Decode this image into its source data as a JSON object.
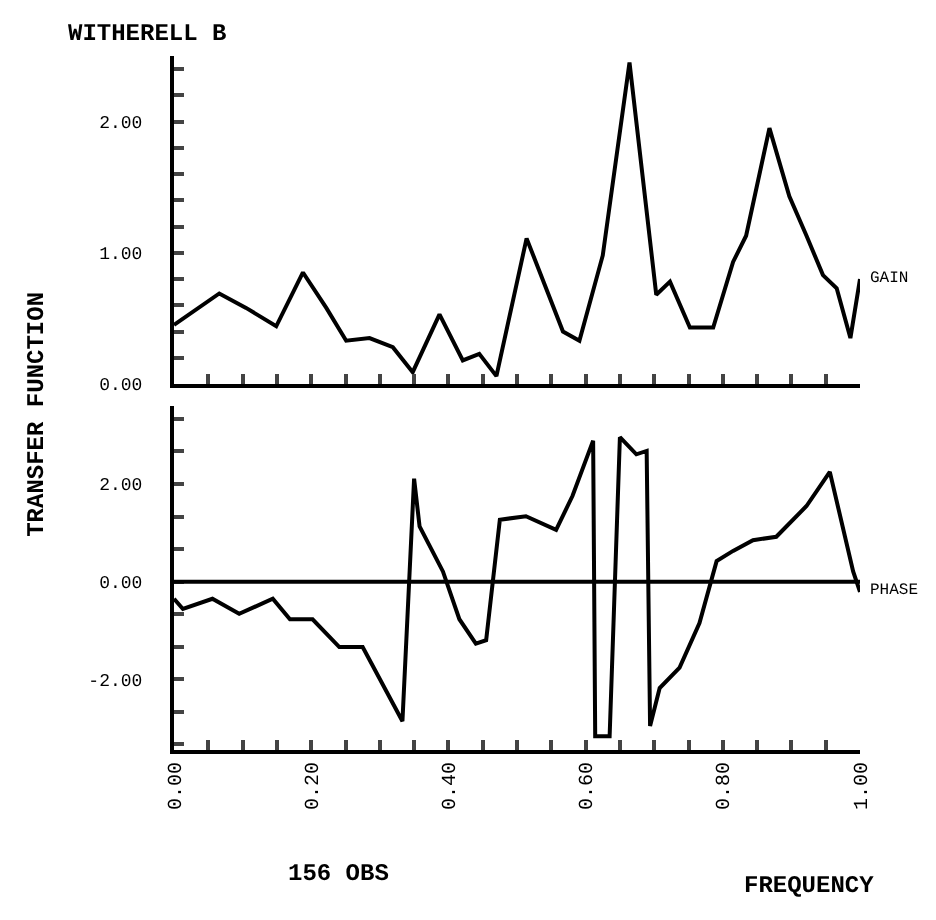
{
  "chart_data": [
    {
      "type": "line",
      "title": "WITHERELL B",
      "x": [
        0,
        0.066,
        0.105,
        0.149,
        0.188,
        0.222,
        0.251,
        0.285,
        0.319,
        0.348,
        0.387,
        0.421,
        0.445,
        0.47,
        0.514,
        0.567,
        0.591,
        0.625,
        0.664,
        0.703,
        0.723,
        0.752,
        0.786,
        0.815,
        0.834,
        0.868,
        0.897,
        0.922,
        0.946,
        0.966,
        0.986,
        1.0
      ],
      "series": [
        {
          "name": "GAIN",
          "color": "#000000",
          "values": [
            0.45,
            0.69,
            0.58,
            0.44,
            0.85,
            0.58,
            0.33,
            0.35,
            0.28,
            0.09,
            0.53,
            0.18,
            0.23,
            0.06,
            1.11,
            0.4,
            0.33,
            0.98,
            2.45,
            0.68,
            0.78,
            0.43,
            0.43,
            0.93,
            1.13,
            1.95,
            1.43,
            1.13,
            0.83,
            0.73,
            0.35,
            0.8
          ]
        }
      ],
      "xlim": [
        0,
        1
      ],
      "ylim": [
        0,
        2.5
      ],
      "xticks": [
        {
          "value": 0,
          "label": null
        },
        {
          "value": 0.05,
          "label": null
        },
        {
          "value": 0.1,
          "label": null
        },
        {
          "value": 0.15,
          "label": null
        },
        {
          "value": 0.2,
          "label": null
        },
        {
          "value": 0.25,
          "label": null
        },
        {
          "value": 0.3,
          "label": null
        },
        {
          "value": 0.35,
          "label": null
        },
        {
          "value": 0.4,
          "label": null
        },
        {
          "value": 0.45,
          "label": null
        },
        {
          "value": 0.5,
          "label": null
        },
        {
          "value": 0.55,
          "label": null
        },
        {
          "value": 0.6,
          "label": null
        },
        {
          "value": 0.65,
          "label": null
        },
        {
          "value": 0.7,
          "label": null
        },
        {
          "value": 0.75,
          "label": null
        },
        {
          "value": 0.8,
          "label": null
        },
        {
          "value": 0.85,
          "label": null
        },
        {
          "value": 0.9,
          "label": null
        },
        {
          "value": 0.95,
          "label": null
        },
        {
          "value": 1,
          "label": null
        }
      ],
      "yticks": [
        {
          "value": 0,
          "label": "0.00"
        },
        {
          "value": 0.2,
          "label": null
        },
        {
          "value": 0.4,
          "label": null
        },
        {
          "value": 0.6,
          "label": null
        },
        {
          "value": 0.8,
          "label": null
        },
        {
          "value": 1,
          "label": "1.00"
        },
        {
          "value": 1.2,
          "label": null
        },
        {
          "value": 1.4,
          "label": null
        },
        {
          "value": 1.6,
          "label": null
        },
        {
          "value": 1.8,
          "label": null
        },
        {
          "value": 2,
          "label": "2.00"
        },
        {
          "value": 2.2,
          "label": null
        },
        {
          "value": 2.4,
          "label": null
        }
      ],
      "tick_labels": "y",
      "marker": "none",
      "line_style": "solid"
    },
    {
      "type": "line",
      "ylabel": "TRANSFER FUNCTION",
      "xlabel": "FREQUENCY",
      "annotations": [
        "156 OBS"
      ],
      "x": [
        0,
        0.013,
        0.056,
        0.095,
        0.144,
        0.169,
        0.202,
        0.241,
        0.275,
        0.333,
        0.35,
        0.358,
        0.392,
        0.416,
        0.44,
        0.455,
        0.475,
        0.513,
        0.557,
        0.581,
        0.611,
        0.614,
        0.635,
        0.65,
        0.674,
        0.689,
        0.694,
        0.708,
        0.737,
        0.766,
        0.791,
        0.815,
        0.844,
        0.878,
        0.922,
        0.956,
        0.99,
        1.0
      ],
      "series": [
        {
          "name": "PHASE",
          "color": "#000000",
          "values": [
            -0.35,
            -0.56,
            -0.35,
            -0.66,
            -0.35,
            -0.77,
            -0.77,
            -1.34,
            -1.34,
            -2.86,
            2.11,
            1.13,
            0.21,
            -0.77,
            -1.27,
            -1.2,
            1.27,
            1.34,
            1.06,
            1.76,
            2.89,
            -3.17,
            -3.17,
            2.96,
            2.61,
            2.68,
            -2.96,
            -2.18,
            -1.76,
            -0.85,
            0.42,
            0.63,
            0.85,
            0.92,
            1.55,
            2.25,
            0.21,
            -0.21
          ]
        }
      ],
      "xlim": [
        0,
        1
      ],
      "ylim": [
        -3.45,
        3.6
      ],
      "xticks": [
        {
          "value": 0,
          "label": "0.00"
        },
        {
          "value": 0.05,
          "label": null
        },
        {
          "value": 0.1,
          "label": null
        },
        {
          "value": 0.15,
          "label": null
        },
        {
          "value": 0.2,
          "label": "0.20"
        },
        {
          "value": 0.25,
          "label": null
        },
        {
          "value": 0.3,
          "label": null
        },
        {
          "value": 0.35,
          "label": null
        },
        {
          "value": 0.4,
          "label": "0.40"
        },
        {
          "value": 0.45,
          "label": null
        },
        {
          "value": 0.5,
          "label": null
        },
        {
          "value": 0.55,
          "label": null
        },
        {
          "value": 0.6,
          "label": "0.60"
        },
        {
          "value": 0.65,
          "label": null
        },
        {
          "value": 0.7,
          "label": null
        },
        {
          "value": 0.75,
          "label": null
        },
        {
          "value": 0.8,
          "label": "0.80"
        },
        {
          "value": 0.85,
          "label": null
        },
        {
          "value": 0.9,
          "label": null
        },
        {
          "value": 0.95,
          "label": null
        },
        {
          "value": 1,
          "label": "1.00"
        }
      ],
      "yticks": [
        {
          "value": -3.33,
          "label": null
        },
        {
          "value": -2.67,
          "label": null
        },
        {
          "value": -2,
          "label": "-2.00"
        },
        {
          "value": -1.33,
          "label": null
        },
        {
          "value": -0.67,
          "label": null
        },
        {
          "value": 0,
          "label": "0.00"
        },
        {
          "value": 0.67,
          "label": null
        },
        {
          "value": 1.33,
          "label": null
        },
        {
          "value": 2,
          "label": "2.00"
        },
        {
          "value": 2.67,
          "label": null
        },
        {
          "value": 3.33,
          "label": null
        }
      ],
      "ref_lines": [
        {
          "axis": "y",
          "value": 0,
          "color": "#000000",
          "line_style": "solid"
        }
      ],
      "marker": "none",
      "line_style": "solid"
    }
  ]
}
